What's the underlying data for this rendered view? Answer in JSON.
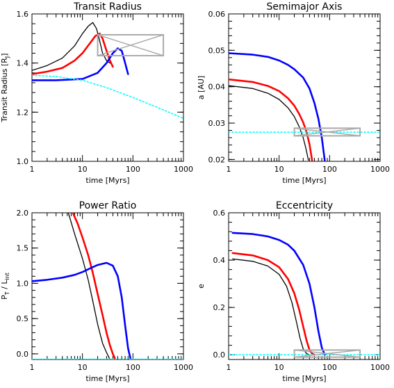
{
  "chart_data": [
    {
      "type": "line",
      "title": "Transit Radius",
      "xlabel": "time [Myrs]",
      "ylabel": "Transit Radius [R",
      "ylabel_sub": "J",
      "ylabel_end": "]",
      "xscale": "log",
      "xlim": [
        1,
        1000
      ],
      "ylim": [
        1.0,
        1.6
      ],
      "xticks": [
        1,
        10,
        100,
        1000
      ],
      "xtick_labels": [
        "1",
        "10",
        "100",
        "1000"
      ],
      "yticks": [
        1.0,
        1.2,
        1.4,
        1.6
      ],
      "ytick_labels": [
        "1.0",
        "1.2",
        "1.4",
        "1.6"
      ],
      "series": [
        {
          "color": "#000000",
          "x": [
            1,
            2,
            4,
            7,
            10,
            13,
            16,
            19,
            22,
            25,
            30,
            35
          ],
          "y": [
            1.37,
            1.39,
            1.42,
            1.47,
            1.52,
            1.55,
            1.565,
            1.54,
            1.49,
            1.44,
            1.41,
            1.4
          ]
        },
        {
          "color": "#ff0000",
          "x": [
            1,
            2,
            4,
            7,
            10,
            14,
            18,
            22,
            25,
            30,
            35,
            40
          ],
          "y": [
            1.355,
            1.365,
            1.38,
            1.41,
            1.44,
            1.48,
            1.51,
            1.52,
            1.5,
            1.45,
            1.41,
            1.385
          ]
        },
        {
          "color": "#0000ff",
          "x": [
            1,
            3,
            10,
            20,
            30,
            40,
            50,
            60,
            70,
            80
          ],
          "y": [
            1.33,
            1.33,
            1.335,
            1.36,
            1.4,
            1.44,
            1.46,
            1.45,
            1.4,
            1.355
          ]
        },
        {
          "color": "#00ffff",
          "dashed": true,
          "x": [
            1,
            3,
            10,
            30,
            100,
            300,
            1000
          ],
          "y": [
            1.35,
            1.345,
            1.33,
            1.3,
            1.26,
            1.22,
            1.175
          ]
        }
      ],
      "box": {
        "color": "#aaaaaa",
        "x": [
          20,
          400
        ],
        "y": [
          1.43,
          1.515
        ]
      }
    },
    {
      "type": "line",
      "title": "Semimajor Axis",
      "xlabel": "time [Myrs]",
      "ylabel": "a [AU]",
      "xscale": "log",
      "xlim": [
        1,
        1000
      ],
      "ylim": [
        0.0195,
        0.06
      ],
      "xticks": [
        1,
        10,
        100,
        1000
      ],
      "xtick_labels": [
        "1",
        "10",
        "100",
        "1000"
      ],
      "yticks": [
        0.02,
        0.03,
        0.04,
        0.05,
        0.06
      ],
      "ytick_labels": [
        "0.02",
        "0.03",
        "0.04",
        "0.05",
        "0.06"
      ],
      "series": [
        {
          "color": "#000000",
          "x": [
            1,
            3,
            6,
            10,
            15,
            20,
            25,
            30,
            34,
            38
          ],
          "y": [
            0.0403,
            0.0395,
            0.0382,
            0.0365,
            0.0342,
            0.0318,
            0.029,
            0.026,
            0.023,
            0.0198
          ]
        },
        {
          "color": "#ff0000",
          "x": [
            1,
            3,
            6,
            10,
            15,
            20,
            25,
            30,
            35,
            40,
            45
          ],
          "y": [
            0.042,
            0.0413,
            0.0402,
            0.0388,
            0.0368,
            0.0348,
            0.0325,
            0.0302,
            0.0275,
            0.0242,
            0.0198
          ]
        },
        {
          "color": "#0000ff",
          "x": [
            1,
            3,
            6,
            10,
            15,
            20,
            30,
            40,
            50,
            60,
            70,
            80
          ],
          "y": [
            0.0492,
            0.0488,
            0.0482,
            0.0472,
            0.046,
            0.0448,
            0.0425,
            0.0395,
            0.0355,
            0.0312,
            0.026,
            0.0198
          ]
        },
        {
          "color": "#00ffff",
          "dashed": true,
          "x": [
            1,
            1000
          ],
          "y": [
            0.0275,
            0.0275
          ]
        }
      ],
      "box": {
        "color": "#aaaaaa",
        "x": [
          20,
          400
        ],
        "y": [
          0.0265,
          0.0286
        ]
      }
    },
    {
      "type": "line",
      "title": "Power Ratio",
      "xlabel": "time [Myrs]",
      "ylabel": "P",
      "ylabel_sub": "T",
      "ylabel_mid": " / L",
      "ylabel_sub2": "int",
      "xscale": "log",
      "xlim": [
        1,
        1000
      ],
      "ylim": [
        -0.08,
        2.0
      ],
      "xticks": [
        1,
        10,
        100,
        1000
      ],
      "xtick_labels": [
        "1",
        "10",
        "100",
        "1000"
      ],
      "yticks": [
        0.0,
        0.5,
        1.0,
        1.5,
        2.0
      ],
      "ytick_labels": [
        "0.0",
        "0.5",
        "1.0",
        "1.5",
        "2.0"
      ],
      "series": [
        {
          "color": "#000000",
          "x": [
            5,
            7,
            10,
            13,
            16,
            20,
            25,
            30,
            35
          ],
          "y": [
            2.05,
            1.7,
            1.35,
            1.05,
            0.75,
            0.42,
            0.15,
            0.02,
            -0.08
          ]
        },
        {
          "color": "#ff0000",
          "x": [
            6,
            8,
            10,
            13,
            16,
            20,
            25,
            30,
            35,
            40,
            45
          ],
          "y": [
            2.05,
            1.85,
            1.65,
            1.4,
            1.15,
            0.85,
            0.55,
            0.3,
            0.12,
            0.0,
            -0.08
          ]
        },
        {
          "color": "#0000ff",
          "x": [
            1,
            2,
            4,
            7,
            10,
            15,
            20,
            30,
            40,
            50,
            60,
            70,
            80,
            90
          ],
          "y": [
            1.03,
            1.05,
            1.08,
            1.12,
            1.16,
            1.22,
            1.26,
            1.29,
            1.25,
            1.1,
            0.8,
            0.4,
            0.08,
            -0.08
          ]
        },
        {
          "color": "#00ffff",
          "dashed": true,
          "x": [
            1,
            1000
          ],
          "y": [
            -0.075,
            -0.075
          ]
        }
      ]
    },
    {
      "type": "line",
      "title": "Eccentricity",
      "xlabel": "time [Myrs]",
      "ylabel": "e",
      "xscale": "log",
      "xlim": [
        1,
        1000
      ],
      "ylim": [
        -0.02,
        0.6
      ],
      "xticks": [
        1,
        10,
        100,
        1000
      ],
      "xtick_labels": [
        "1",
        "10",
        "100",
        "1000"
      ],
      "yticks": [
        0.0,
        0.2,
        0.4,
        0.6
      ],
      "ytick_labels": [
        "0.0",
        "0.2",
        "0.4",
        "0.6"
      ],
      "series": [
        {
          "color": "#000000",
          "x": [
            1.2,
            3,
            6,
            10,
            14,
            18,
            22,
            26,
            30,
            35,
            40
          ],
          "y": [
            0.405,
            0.395,
            0.375,
            0.34,
            0.29,
            0.22,
            0.14,
            0.07,
            0.025,
            0.005,
            0.0
          ]
        },
        {
          "color": "#ff0000",
          "x": [
            1.2,
            3,
            6,
            10,
            15,
            20,
            25,
            30,
            35,
            40,
            45,
            50
          ],
          "y": [
            0.43,
            0.42,
            0.4,
            0.37,
            0.32,
            0.26,
            0.19,
            0.12,
            0.06,
            0.02,
            0.005,
            0.0
          ]
        },
        {
          "color": "#0000ff",
          "x": [
            1.2,
            3,
            6,
            10,
            15,
            20,
            30,
            40,
            50,
            60,
            70,
            80
          ],
          "y": [
            0.515,
            0.51,
            0.5,
            0.485,
            0.465,
            0.44,
            0.38,
            0.3,
            0.2,
            0.1,
            0.03,
            0.0
          ]
        },
        {
          "color": "#00ffff",
          "dashed": true,
          "x": [
            1,
            1000
          ],
          "y": [
            0.0,
            0.0
          ]
        }
      ],
      "box": {
        "color": "#aaaaaa",
        "x": [
          20,
          400
        ],
        "y": [
          -0.01,
          0.02
        ]
      }
    }
  ]
}
